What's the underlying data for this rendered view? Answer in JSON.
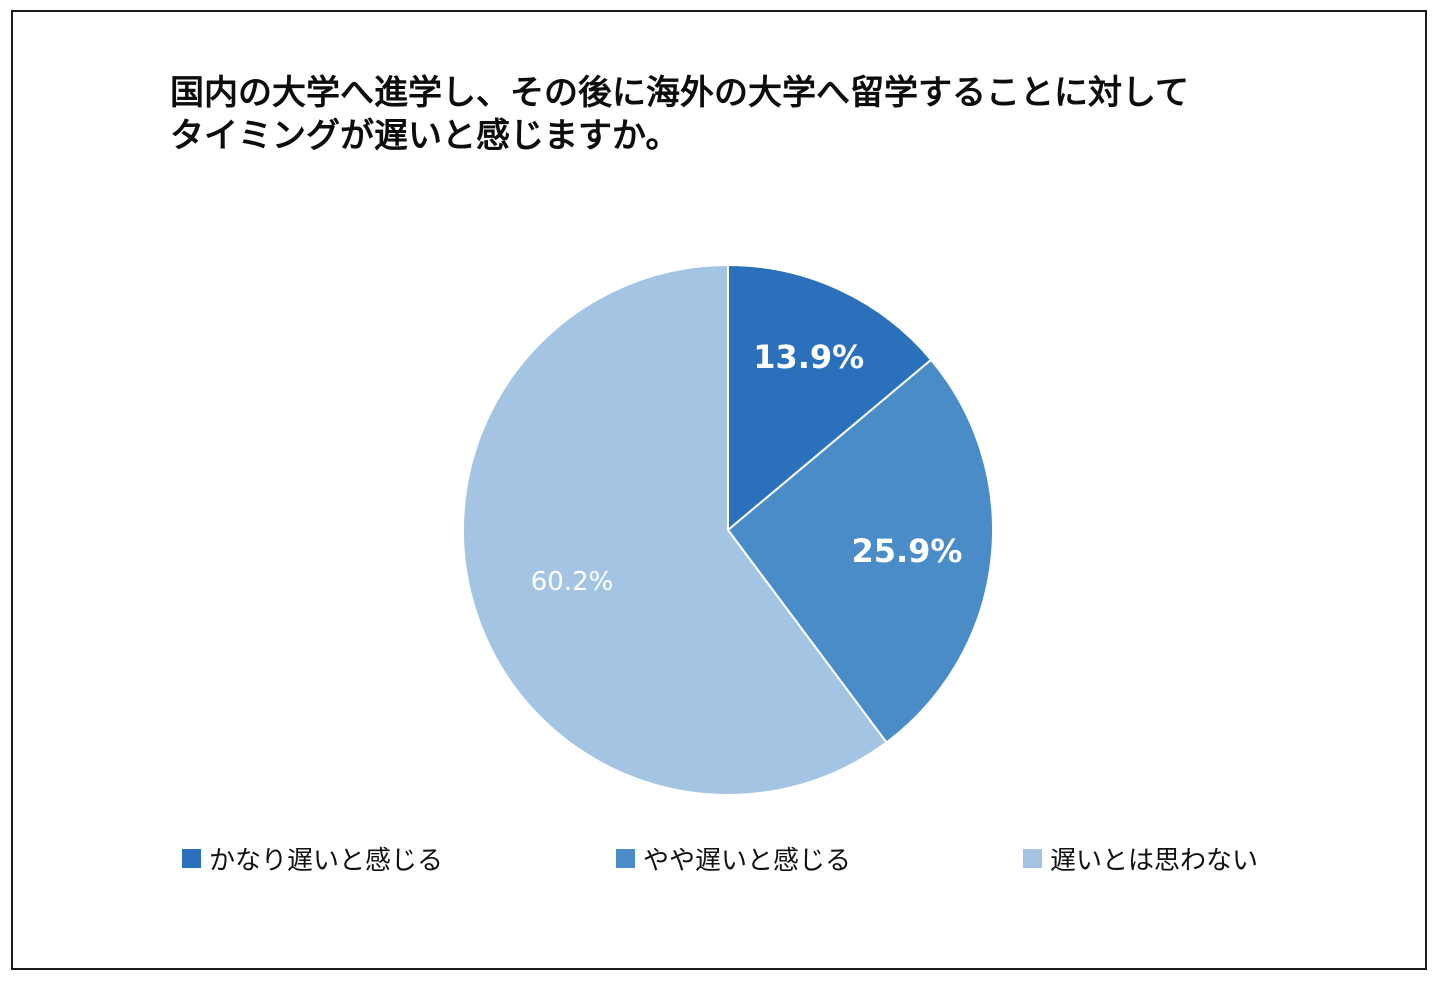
{
  "chart_data": {
    "type": "pie",
    "title": "国内の大学へ進学し、その後に海外の大学へ留学することに対してタイミングが遅いと感じますか。",
    "title_lines": [
      "国内の大学へ進学し、その後に海外の大学へ留学することに対して",
      "タイミングが遅いと感じますか。"
    ],
    "categories": [
      "かなり遅いと感じる",
      "やや遅いと感じる",
      "遅いとは思わない"
    ],
    "values": [
      13.9,
      25.9,
      60.2
    ],
    "data_labels": [
      "13.9%",
      "25.9%",
      "60.2%"
    ],
    "colors": [
      "#2b70bb",
      "#4a8cc8",
      "#a4c4e3"
    ],
    "label_colors": [
      "#ffffff",
      "#ffffff",
      "#ffffff"
    ],
    "label_bold": [
      true,
      true,
      false
    ],
    "start_angle_deg": 0,
    "direction": "clockwise",
    "legend_position": "bottom"
  }
}
